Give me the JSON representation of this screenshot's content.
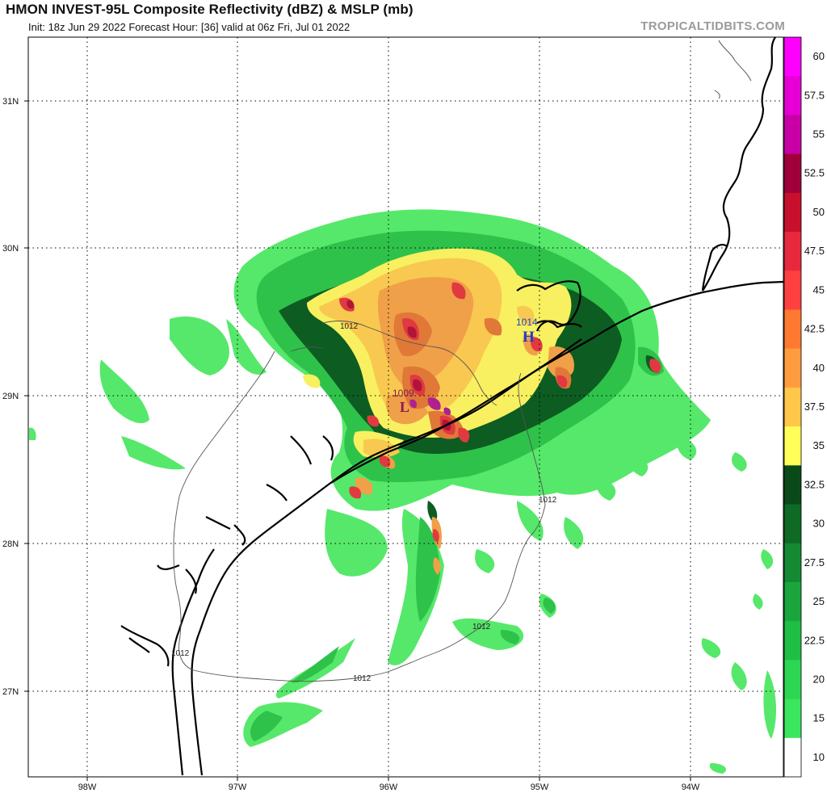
{
  "header": {
    "title": "HMON INVEST-95L Composite Reflectivity (dBZ) & MSLP (mb)",
    "subtitle": "Init: 18z Jun 29 2022   Forecast Hour: [36]   valid at 06z Fri, Jul 01 2022",
    "brand": "TROPICALTIDBITS.COM"
  },
  "axes": {
    "lat_labels": [
      "31N",
      "30N",
      "29N",
      "28N",
      "27N"
    ],
    "lon_labels": [
      "98W",
      "97W",
      "96W",
      "95W",
      "94W"
    ]
  },
  "pressure_centers": [
    {
      "type": "L",
      "value": "1009",
      "color": "#8b1a4a"
    },
    {
      "type": "H",
      "value": "1014",
      "color": "#1c3fc8"
    }
  ],
  "isobar_labels": [
    "1012",
    "1012",
    "1012",
    "1012",
    "1012"
  ],
  "colorbar": {
    "labels": [
      "60",
      "57.5",
      "55",
      "52.5",
      "50",
      "47.5",
      "45",
      "42.5",
      "40",
      "37.5",
      "35",
      "32.5",
      "30",
      "27.5",
      "25",
      "22.5",
      "20",
      "15",
      "10"
    ],
    "colors": [
      "#ff00ff",
      "#e600d6",
      "#c800a6",
      "#a0003a",
      "#c8102e",
      "#e8283c",
      "#ff4040",
      "#ff7a30",
      "#ff9c40",
      "#ffc84a",
      "#ffff58",
      "#0a4a1a",
      "#0f6a26",
      "#148a32",
      "#1aa63c",
      "#1fbf46",
      "#2cd652",
      "#3ae65e",
      "#ffffff"
    ]
  },
  "legend": {
    "reflectivity_colors": {
      "light_green": "#56e86a",
      "green": "#2fc24a",
      "mid_green": "#1a9a38",
      "dark_green": "#0d5c22",
      "yellow": "#f8f060",
      "light_orange": "#f8c850",
      "orange": "#f0a048",
      "dark_orange": "#e07838",
      "red": "#e03a40",
      "dark_red": "#b01438",
      "magenta": "#b02090"
    }
  }
}
